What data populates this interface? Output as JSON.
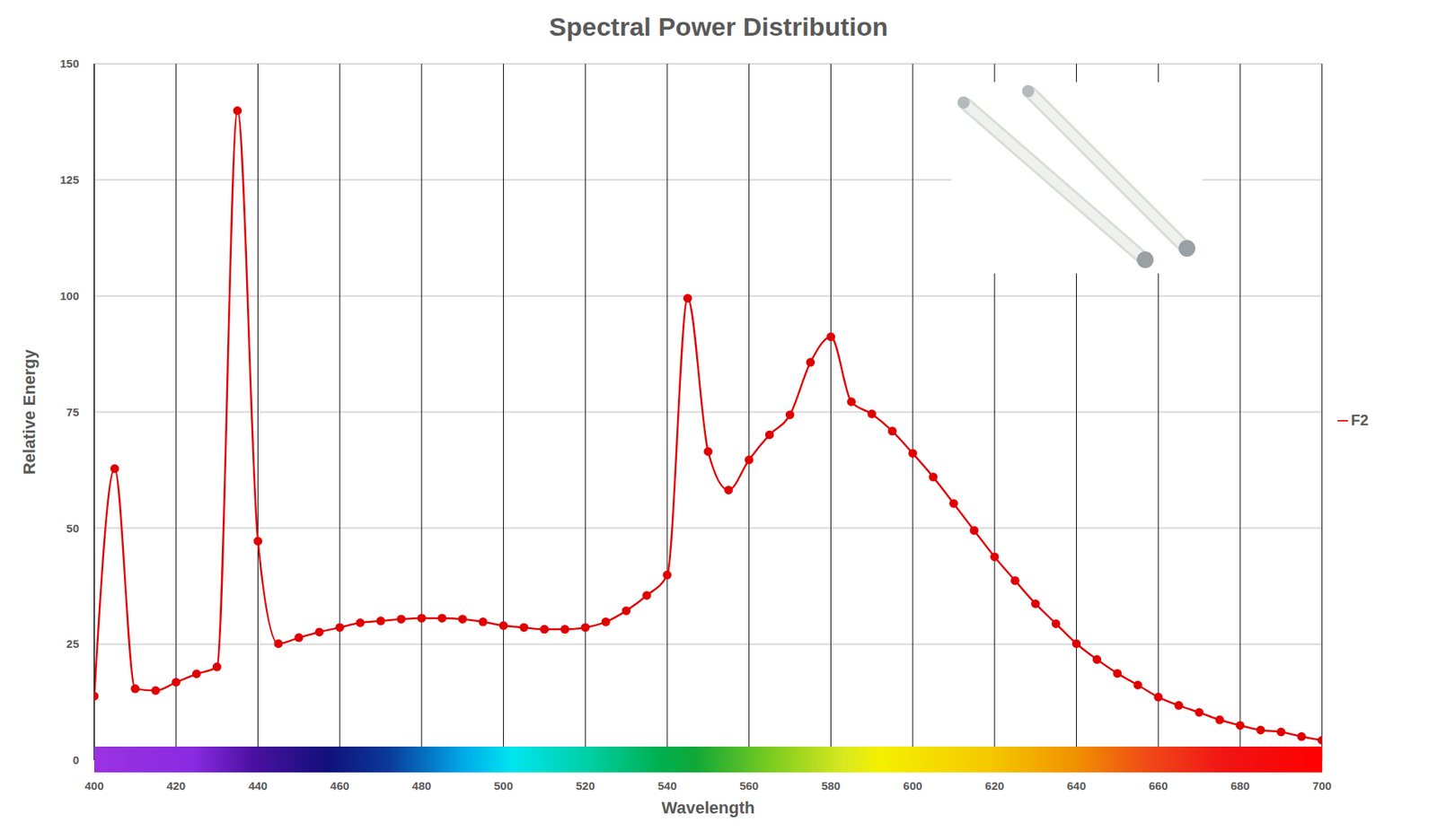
{
  "chart_data": {
    "type": "line",
    "title": "Spectral Power Distribution",
    "x_label": "Wavelength",
    "y_label": "Relative Energy",
    "x": [
      400,
      405,
      410,
      415,
      420,
      425,
      430,
      435,
      440,
      445,
      450,
      455,
      460,
      465,
      470,
      475,
      480,
      485,
      490,
      495,
      500,
      505,
      510,
      515,
      520,
      525,
      530,
      535,
      540,
      545,
      550,
      555,
      560,
      565,
      570,
      575,
      580,
      585,
      590,
      595,
      600,
      605,
      610,
      615,
      620,
      625,
      630,
      635,
      640,
      645,
      650,
      655,
      660,
      665,
      670,
      675,
      680,
      685,
      690,
      695,
      700
    ],
    "series": [
      {
        "name": "F2",
        "color": "#e00000",
        "marker": "circle",
        "values": [
          13.8,
          62.8,
          15.4,
          15.0,
          16.8,
          18.6,
          20.1,
          139.9,
          47.2,
          25.1,
          26.4,
          27.6,
          28.6,
          29.6,
          30.0,
          30.4,
          30.6,
          30.6,
          30.4,
          29.8,
          29.0,
          28.6,
          28.2,
          28.2,
          28.6,
          29.8,
          32.2,
          35.5,
          39.9,
          99.5,
          66.5,
          58.2,
          64.7,
          70.1,
          74.4,
          85.7,
          91.2,
          77.2,
          74.6,
          70.9,
          66.1,
          61.0,
          55.3,
          49.5,
          43.8,
          38.7,
          33.7,
          29.4,
          25.1,
          21.7,
          18.7,
          16.2,
          13.6,
          11.8,
          10.3,
          8.7,
          7.5,
          6.5,
          6.1,
          5.1,
          4.3
        ]
      }
    ],
    "xlim": [
      400,
      700
    ],
    "xticks": [
      400,
      420,
      440,
      460,
      480,
      500,
      520,
      540,
      560,
      580,
      600,
      620,
      640,
      660,
      680,
      700
    ],
    "ylim": [
      0,
      150
    ],
    "yticks": [
      0,
      25,
      50,
      75,
      100,
      125,
      150
    ],
    "grid": true,
    "legend": "right"
  }
}
